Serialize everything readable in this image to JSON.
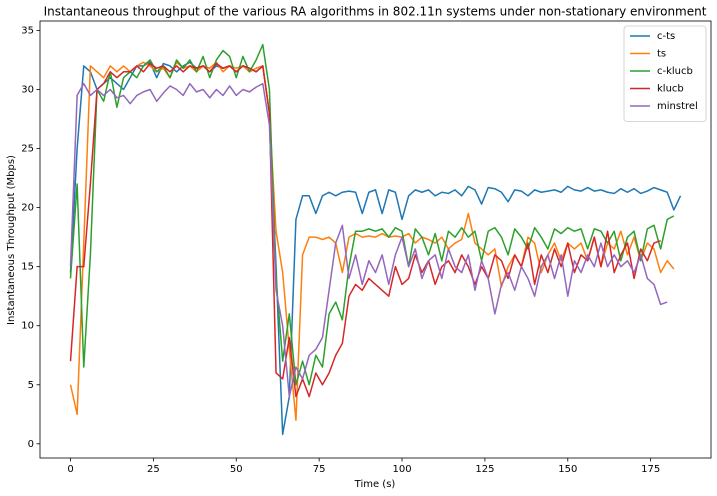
{
  "chart_data": {
    "type": "line",
    "title": "Instantaneous throughput of the various RA algorithms in 802.11n systems under non-stationary environment",
    "x_label": "Time (s)",
    "y_label": "Instantaneous Throughput (Mbps)",
    "xlim": [
      -9.2,
      193.2
    ],
    "ylim": [
      -1.2,
      35.8
    ],
    "xticks": [
      0,
      25,
      50,
      75,
      100,
      125,
      150,
      175
    ],
    "yticks": [
      0,
      5,
      10,
      15,
      20,
      25,
      30,
      35
    ],
    "legend": "upper right",
    "x": [
      0,
      2,
      4,
      6,
      8,
      10,
      12,
      14,
      16,
      18,
      20,
      22,
      24,
      26,
      28,
      30,
      32,
      34,
      36,
      38,
      40,
      42,
      44,
      46,
      48,
      50,
      52,
      54,
      56,
      58,
      60,
      62,
      64,
      66,
      68,
      70,
      72,
      74,
      76,
      78,
      80,
      82,
      84,
      86,
      88,
      90,
      92,
      94,
      96,
      98,
      100,
      102,
      104,
      106,
      108,
      110,
      112,
      114,
      116,
      118,
      120,
      122,
      124,
      126,
      128,
      130,
      132,
      134,
      136,
      138,
      140,
      142,
      144,
      146,
      148,
      150,
      152,
      154,
      156,
      158,
      160,
      162,
      164,
      166,
      168,
      170,
      172,
      174,
      176,
      178,
      180,
      182,
      184
    ],
    "series": [
      {
        "name": "c-ts",
        "color": "#1f77b4",
        "values": [
          14.5,
          25,
          32,
          31.5,
          30,
          30.5,
          31,
          30.5,
          30,
          31,
          32,
          32,
          32.3,
          31,
          32.2,
          32,
          31.5,
          32,
          32.3,
          31.8,
          32,
          31.5,
          32,
          31.8,
          32,
          31.5,
          32,
          31.8,
          31.5,
          32,
          28,
          15,
          0.8,
          4,
          19,
          21,
          21,
          19.5,
          21,
          21.3,
          21,
          21.3,
          21.4,
          21.3,
          19.5,
          21.3,
          21.5,
          19.5,
          21.5,
          21.3,
          19,
          21,
          21.5,
          21.3,
          21.5,
          21,
          21.3,
          21.2,
          21.5,
          21,
          21.8,
          21.5,
          20.3,
          21.7,
          21.6,
          21.3,
          20.5,
          21.5,
          21.4,
          21,
          21.5,
          21.3,
          21.4,
          21.5,
          21.3,
          21.8,
          21.5,
          21.4,
          21.7,
          21.4,
          21.5,
          21.3,
          21.2,
          21.6,
          21.3,
          21.6,
          21.2,
          21.4,
          21.7,
          21.5,
          21.3,
          19.8,
          21
        ]
      },
      {
        "name": "ts",
        "color": "#ff7f0e",
        "values": [
          5,
          2.5,
          17,
          32,
          31.5,
          31,
          32,
          31.5,
          32,
          31.5,
          32,
          32.3,
          32,
          31.5,
          31.8,
          31,
          32.3,
          31.8,
          32,
          31.5,
          32,
          31.8,
          32.3,
          31.5,
          32,
          31.8,
          32,
          31.5,
          31.8,
          32,
          28,
          18,
          14.5,
          8,
          2,
          16,
          17.5,
          17.5,
          17.3,
          17.5,
          17,
          14.5,
          17.5,
          17.8,
          17.5,
          17.6,
          17.5,
          17.8,
          17.5,
          17.6,
          17.5,
          17.8,
          17,
          17.5,
          17.3,
          17,
          17.5,
          16.5,
          17,
          17.3,
          19.5,
          17,
          16.5,
          16,
          16.5,
          13.3,
          15,
          16,
          15,
          17.5,
          17,
          14.5,
          16,
          17,
          15.5,
          17,
          16.5,
          17,
          15.5,
          17.5,
          15,
          17,
          16.5,
          18,
          16,
          17.5,
          15.5,
          17,
          16.5,
          14.5,
          15.5,
          14.8,
          null
        ]
      },
      {
        "name": "c-klucb",
        "color": "#2ca02c",
        "values": [
          14,
          22,
          6.5,
          16,
          30,
          29,
          31.5,
          28.5,
          31,
          31.5,
          31,
          32,
          32.5,
          31.5,
          32,
          31,
          32.5,
          31.8,
          32.5,
          31.5,
          32.8,
          31,
          32.5,
          33.3,
          32.8,
          31,
          32.8,
          31.5,
          32.5,
          33.8,
          30,
          14,
          7,
          11,
          5,
          7,
          5,
          7.5,
          6.5,
          11,
          12,
          10.5,
          15,
          18,
          18,
          18.2,
          18,
          18.2,
          17.5,
          18.3,
          18,
          15,
          18.2,
          17.5,
          16,
          17.8,
          15.5,
          18,
          17.5,
          18.3,
          17.5,
          18,
          15.5,
          18,
          18.3,
          17.5,
          16,
          18.2,
          17.5,
          16.5,
          18.3,
          17.5,
          16.5,
          18.2,
          17.8,
          18.3,
          18,
          18.2,
          16.5,
          18.2,
          18,
          17,
          18,
          15.5,
          17.5,
          18,
          15.5,
          18.2,
          18.5,
          16.5,
          19,
          19.3,
          null
        ]
      },
      {
        "name": "klucb",
        "color": "#d62728",
        "values": [
          7,
          15,
          15,
          22,
          30,
          30.5,
          31.5,
          31,
          31.5,
          31.5,
          32,
          31.5,
          32.2,
          31.8,
          32,
          31.5,
          32,
          31.5,
          32,
          31.8,
          32,
          31.5,
          32.2,
          31.8,
          32,
          31.5,
          32,
          31.8,
          31.5,
          32,
          28,
          6,
          5.5,
          9,
          4,
          5.5,
          4,
          6,
          5,
          6,
          7.5,
          8.5,
          12.5,
          13.5,
          13,
          14,
          13.5,
          13,
          12.5,
          15,
          13.5,
          14,
          16,
          14.5,
          15.5,
          13.5,
          15,
          15.5,
          14.5,
          16,
          15,
          13.5,
          15,
          14,
          16,
          15.5,
          14,
          16,
          15,
          17,
          13.5,
          16,
          14.5,
          16.5,
          15,
          17,
          14.5,
          16,
          15.5,
          17.5,
          15,
          18,
          14.5,
          16,
          17,
          14,
          16.5,
          15.5,
          17,
          17.2,
          null,
          null,
          null
        ]
      },
      {
        "name": "minstrel",
        "color": "#9467bd",
        "values": [
          15,
          29.5,
          30.5,
          29.5,
          30,
          29.5,
          30,
          29.3,
          29.5,
          28.8,
          29.5,
          29.8,
          30,
          29,
          29.7,
          30.3,
          30,
          29.5,
          30.5,
          29.8,
          30,
          29.3,
          30,
          29.5,
          30.3,
          29.5,
          30,
          29.8,
          30.2,
          30.5,
          27,
          13,
          10,
          4,
          6.5,
          5.5,
          7.5,
          8,
          9,
          13,
          17,
          18.5,
          14,
          16,
          13.5,
          15.5,
          14.5,
          16,
          13.5,
          16,
          17.5,
          15,
          16.5,
          14,
          15.5,
          16,
          14,
          16.5,
          15,
          14.5,
          16,
          13,
          15.5,
          14,
          11,
          13.5,
          14.5,
          13,
          15,
          14,
          12.5,
          15,
          16,
          14,
          16,
          12.5,
          15.5,
          14.5,
          16,
          15,
          17,
          15,
          16,
          15,
          15.5,
          14.5,
          16,
          14,
          13.5,
          11.8,
          12,
          null,
          null
        ]
      }
    ]
  }
}
